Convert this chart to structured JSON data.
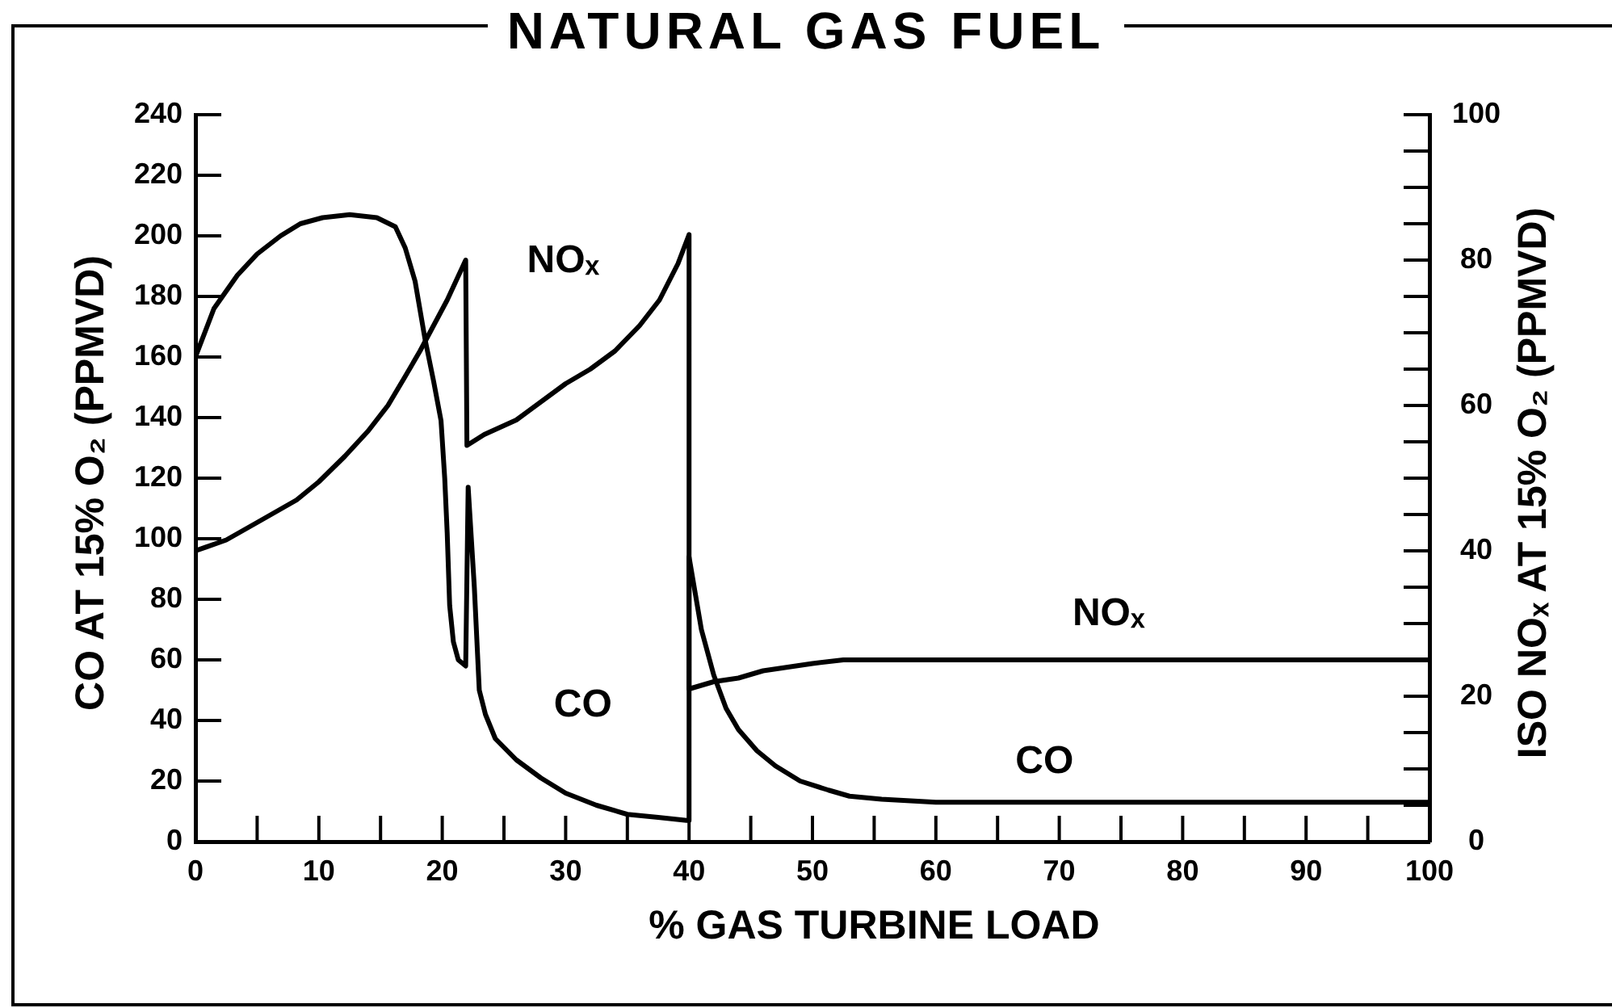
{
  "chart_data": {
    "type": "line",
    "title": "NATURAL GAS FUEL",
    "xlabel": "% GAS TURBINE LOAD",
    "ylabel": "CO AT 15% O₂ (PPMVD)",
    "y2label": "ISO NOₓ AT 15% O₂ (PPMVD)",
    "series": [
      {
        "name": "CO",
        "color": "#000000",
        "x": [
          0,
          1.5,
          3.4,
          5,
          6.9,
          8.5,
          10.3,
          12.5,
          14.7,
          16.2,
          17,
          17.8,
          18.6,
          19.3,
          19.9,
          20.2,
          20.4,
          20.6,
          20.9,
          21.3,
          21.9,
          22.1,
          22.6,
          23,
          23.5,
          24.3,
          26,
          28,
          30,
          32.5,
          35,
          37.5,
          39.8,
          40,
          40,
          41,
          42,
          43,
          44,
          45.5,
          47,
          49,
          51.3,
          53,
          55.6,
          60,
          70,
          80,
          90,
          100
        ],
        "values": [
          160,
          176,
          187,
          194,
          200,
          204,
          206,
          207,
          206,
          203,
          196,
          185,
          166,
          152,
          139,
          120,
          102,
          78,
          66,
          60,
          58,
          117,
          84,
          50,
          42,
          34,
          27,
          21,
          16,
          12,
          9,
          8,
          7,
          7,
          94,
          70,
          55,
          44,
          37,
          30,
          25,
          20,
          17,
          15,
          14,
          13,
          13,
          13,
          13,
          13
        ]
      },
      {
        "name": "NOₓ",
        "color": "#000000",
        "axis": "y2",
        "x": [
          0,
          2.5,
          5.1,
          8.2,
          10,
          12.1,
          14,
          15.6,
          17,
          18.2,
          19.3,
          20.4,
          21.9,
          22,
          23.4,
          26,
          30,
          32,
          34,
          36,
          37.6,
          39.1,
          40,
          40,
          42,
          44,
          46,
          48,
          50,
          52.5,
          55,
          60,
          70,
          80,
          90,
          100
        ],
        "values": [
          40,
          41.5,
          44,
          47,
          49.5,
          53,
          56.5,
          60,
          64,
          67.5,
          71,
          74.5,
          80,
          54.5,
          56,
          58,
          63,
          65,
          67.5,
          71,
          74.5,
          79.5,
          83.5,
          21,
          22,
          22.5,
          23.5,
          24,
          24.5,
          25,
          25,
          25,
          25,
          25,
          25,
          25
        ]
      }
    ],
    "xlim": [
      0,
      100
    ],
    "xticks": [
      0,
      {
        "value": 5,
        "label": null
      },
      10,
      {
        "value": 15,
        "label": null
      },
      20,
      {
        "value": 25,
        "label": null
      },
      30,
      {
        "value": 35,
        "label": null
      },
      40,
      {
        "value": 45,
        "label": null
      },
      50,
      {
        "value": 55,
        "label": null
      },
      60,
      {
        "value": 65,
        "label": null
      },
      70,
      {
        "value": 75,
        "label": null
      },
      80,
      {
        "value": 85,
        "label": null
      },
      90,
      {
        "value": 95,
        "label": null
      },
      100
    ],
    "ylim": [
      0,
      240
    ],
    "yticks": [
      0,
      20,
      40,
      60,
      80,
      100,
      120,
      140,
      160,
      180,
      200,
      220,
      240
    ],
    "y2lim": [
      0,
      100
    ],
    "y2ticks": [
      0,
      {
        "value": 5,
        "label": null
      },
      {
        "value": 10,
        "label": null
      },
      {
        "value": 15,
        "label": null
      },
      20,
      {
        "value": 25,
        "label": null
      },
      {
        "value": 30,
        "label": null
      },
      {
        "value": 35,
        "label": null
      },
      40,
      {
        "value": 45,
        "label": null
      },
      {
        "value": 50,
        "label": null
      },
      {
        "value": 55,
        "label": null
      },
      60,
      {
        "value": 65,
        "label": null
      },
      {
        "value": 70,
        "label": null
      },
      {
        "value": 75,
        "label": null
      },
      80,
      {
        "value": 85,
        "label": null
      },
      {
        "value": 90,
        "label": null
      },
      {
        "value": 95,
        "label": null
      },
      100
    ],
    "grid": false,
    "legend": false
  }
}
